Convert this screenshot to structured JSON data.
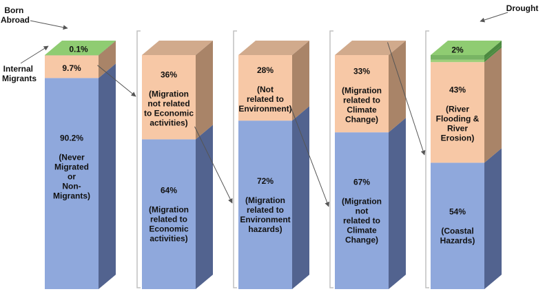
{
  "chart_data": {
    "type": "bar",
    "stacked": true,
    "style": "3d-stacked-percent",
    "colors": {
      "base_front": "#8fa8dc",
      "base_side": "#52638f",
      "upper_front": "#f7c8a6",
      "upper_side": "#a98468",
      "top_front": "#78b464",
      "top_side": "#4c8a40",
      "thin_front": "#9ed07a",
      "top_face_light": "#d1aa8c",
      "top_face_green": "#8fcc72",
      "bracket": "#c0c0c0",
      "arrow": "#555555"
    },
    "bars": [
      {
        "segments": [
          {
            "value": 90.2,
            "lines": [
              "90.2%",
              "",
              "(Never",
              "Migrated",
              "or",
              "Non-",
              "Migrants)"
            ]
          },
          {
            "value": 9.7,
            "lines": [
              "9.7%"
            ]
          },
          {
            "value": 0.1,
            "lines": [
              "0.1%"
            ]
          }
        ]
      },
      {
        "segments": [
          {
            "value": 64,
            "lines": [
              "64%",
              "",
              "(Migration",
              "related to",
              "Economic",
              "activities)"
            ]
          },
          {
            "value": 36,
            "lines": [
              "36%",
              "",
              "(Migration",
              "not related",
              "to Economic",
              "activities)"
            ]
          }
        ]
      },
      {
        "segments": [
          {
            "value": 72,
            "lines": [
              "72%",
              "",
              "(Migration",
              "related to",
              "Environment",
              "hazards)"
            ]
          },
          {
            "value": 28,
            "lines": [
              "28%",
              "",
              "(Not",
              "related to",
              "Environment)"
            ]
          }
        ]
      },
      {
        "segments": [
          {
            "value": 67,
            "lines": [
              "67%",
              "",
              "(Migration",
              "not",
              "related to",
              "Climate",
              "Change)"
            ]
          },
          {
            "value": 33,
            "lines": [
              "33%",
              "",
              "(Migration",
              "related to",
              "Climate",
              "Change)"
            ]
          }
        ]
      },
      {
        "segments": [
          {
            "value": 54,
            "lines": [
              "54%",
              "",
              "(Coastal",
              "Hazards)"
            ]
          },
          {
            "value": 43,
            "lines": [
              "43%",
              "",
              "(River",
              "Flooding &",
              "River",
              "Erosion)"
            ]
          },
          {
            "value": 1,
            "lines": []
          },
          {
            "value": 2,
            "lines": [
              "2%"
            ]
          }
        ]
      }
    ],
    "annotations": {
      "born_abroad": [
        "Born",
        "Abroad"
      ],
      "internal_migrants": [
        "Internal",
        "Migrants"
      ],
      "drought": "Drought"
    }
  }
}
